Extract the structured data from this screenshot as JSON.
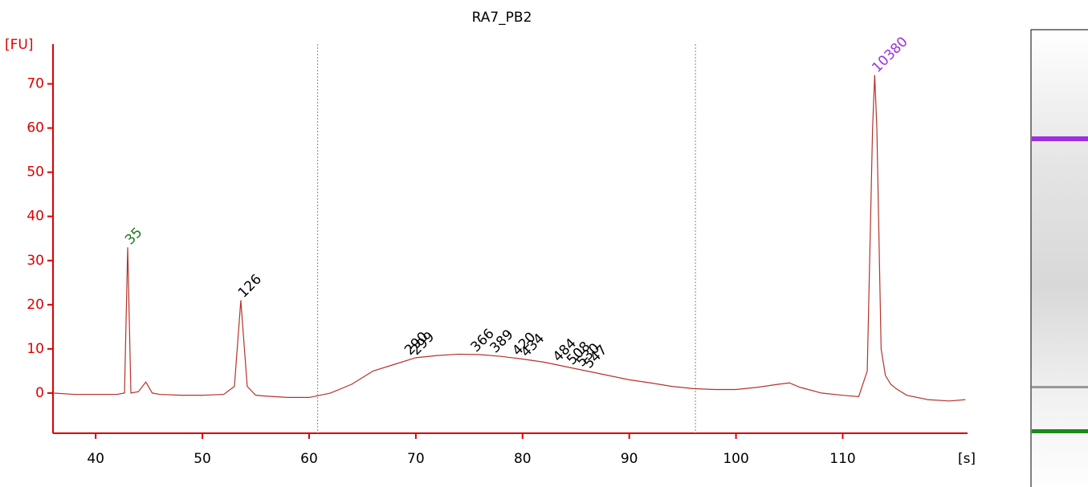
{
  "chart_data": {
    "type": "line",
    "title": "RA7_PB2",
    "y_label": "[FU]",
    "x_label": "[s]",
    "xlim": [
      36,
      121.7
    ],
    "ylim": [
      -9.1,
      79
    ],
    "xticks": [
      40,
      50,
      60,
      70,
      80,
      90,
      100,
      110
    ],
    "yticks": [
      0,
      10,
      20,
      30,
      40,
      50,
      60,
      70
    ],
    "axis_color": "#dd0000",
    "markers": [
      60.8,
      96.2
    ],
    "series": [
      {
        "name": "RA7_PB2",
        "color": "#b5322a",
        "x": [
          36,
          38,
          40,
          42,
          42.7,
          43,
          43.3,
          44,
          44.7,
          45.3,
          46,
          48,
          50,
          52,
          53,
          53.6,
          54.2,
          55,
          56,
          58,
          60,
          61,
          62,
          64,
          66,
          68,
          70,
          72,
          74,
          76,
          78,
          80,
          82,
          84,
          86,
          88,
          90,
          92,
          94,
          96,
          98,
          100,
          102,
          104,
          105,
          106,
          108,
          110,
          111.5,
          112.3,
          112.8,
          113,
          113.2,
          113.6,
          114,
          114.5,
          115,
          116,
          118,
          120,
          121.5
        ],
        "values": [
          0,
          -0.3,
          -0.3,
          -0.3,
          0,
          33,
          0,
          0.3,
          2.5,
          0,
          -0.3,
          -0.5,
          -0.5,
          -0.3,
          1.5,
          21,
          1.5,
          -0.5,
          -0.7,
          -1,
          -1,
          -0.5,
          0,
          2,
          5,
          6.5,
          8,
          8.5,
          8.8,
          8.7,
          8.3,
          7.7,
          7,
          6,
          5,
          4,
          3,
          2.3,
          1.5,
          1,
          0.8,
          0.8,
          1.3,
          2,
          2.3,
          1.3,
          0,
          -0.5,
          -0.8,
          5,
          60,
          72,
          60,
          10,
          4,
          2,
          1,
          -0.5,
          -1.5,
          -1.8,
          -1.5
        ]
      }
    ],
    "peaks": [
      {
        "label": "35",
        "x": 43,
        "y": 33,
        "color": "#1a7a1a"
      },
      {
        "label": "126",
        "x": 53.6,
        "y": 21,
        "color": "#000000"
      },
      {
        "label": "290",
        "x": 69.2,
        "y": 8,
        "color": "#000000"
      },
      {
        "label": "299",
        "x": 69.8,
        "y": 8,
        "color": "#000000"
      },
      {
        "label": "366",
        "x": 75.4,
        "y": 8.7,
        "color": "#000000"
      },
      {
        "label": "389",
        "x": 77.2,
        "y": 8.5,
        "color": "#000000"
      },
      {
        "label": "420",
        "x": 79.3,
        "y": 7.9,
        "color": "#000000"
      },
      {
        "label": "434",
        "x": 80.1,
        "y": 7.6,
        "color": "#000000"
      },
      {
        "label": "484",
        "x": 83.1,
        "y": 6.5,
        "color": "#000000"
      },
      {
        "label": "508",
        "x": 84.4,
        "y": 5.8,
        "color": "#000000"
      },
      {
        "label": "530",
        "x": 85.3,
        "y": 5.4,
        "color": "#000000"
      },
      {
        "label": "547",
        "x": 86,
        "y": 5,
        "color": "#000000"
      },
      {
        "label": "10380",
        "x": 113,
        "y": 72,
        "color": "#9b30e0"
      }
    ]
  }
}
